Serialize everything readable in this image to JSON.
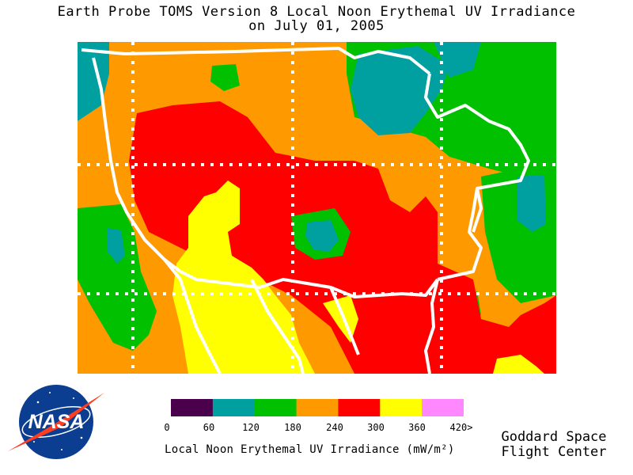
{
  "title": {
    "line1": "Earth Probe TOMS Version 8 Local Noon Erythemal UV Irradiance",
    "line2": "on July 01, 2005"
  },
  "legend": {
    "ticks": [
      "0",
      "60",
      "120",
      "180",
      "240",
      "300",
      "360",
      "420>"
    ],
    "colors": [
      "#4b004b",
      "#00a0a0",
      "#00c000",
      "#ff9900",
      "#ff0000",
      "#ffff00",
      "#ff88ff"
    ],
    "label": "Local Noon Erythemal UV Irradiance (mW/m²)"
  },
  "credit": {
    "line1": "Goddard Space",
    "line2": "Flight Center"
  },
  "logo": {
    "text": "NASA"
  },
  "map": {
    "colors": {
      "orange": "#ff9900",
      "red": "#ff0000",
      "yellow": "#ffff00",
      "green": "#00c000",
      "teal": "#00a0a0",
      "border": "#ffffff"
    }
  }
}
